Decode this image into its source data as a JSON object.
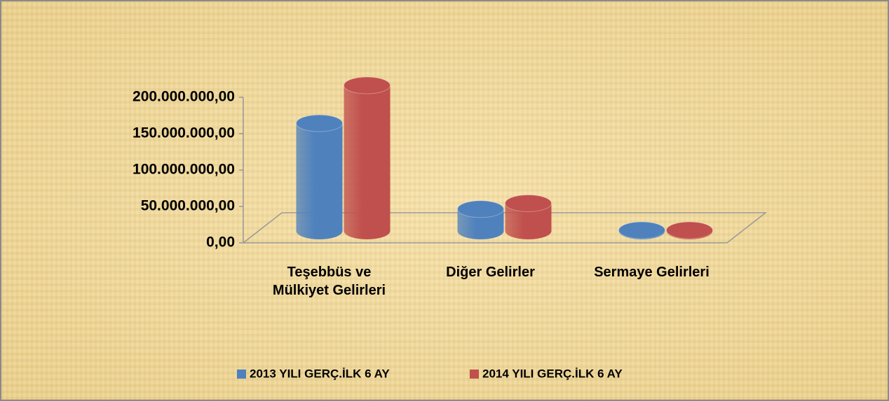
{
  "chart_data": {
    "type": "bar3d",
    "categories": [
      "Teşebbüs ve Mülkiyet Gelirleri",
      "Diğer Gelirler",
      "Sermaye Gelirleri"
    ],
    "series": [
      {
        "name": "2013 YILI GERÇ.İLK 6 AY",
        "color": "#4f81bd",
        "values": [
          148000000,
          30000000,
          1000000
        ]
      },
      {
        "name": "2014 YILI GERÇ.İLK 6 AY",
        "color": "#c0504d",
        "values": [
          200000000,
          38000000,
          1000000
        ]
      }
    ],
    "ylim": [
      0,
      200000000
    ],
    "yticks": [
      {
        "value": 0,
        "label": "0,00"
      },
      {
        "value": 50000000,
        "label": "50.000.000,00"
      },
      {
        "value": 100000000,
        "label": "100.000.000,00"
      },
      {
        "value": 150000000,
        "label": "150.000.000,00"
      },
      {
        "value": 200000000,
        "label": "200.000.000,00"
      }
    ],
    "legend": "bottom"
  }
}
